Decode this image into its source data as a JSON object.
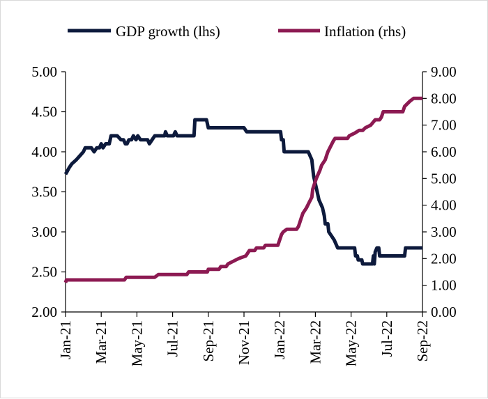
{
  "chart_data": {
    "type": "line",
    "title": "",
    "xlabel": "",
    "ylabel": "",
    "y2label": "",
    "grid": false,
    "legend_position": "top",
    "x_ticks": [
      "Jan-21",
      "Mar-21",
      "May-21",
      "Jul-21",
      "Sep-21",
      "Nov-21",
      "Jan-22",
      "Mar-22",
      "May-22",
      "Jul-22",
      "Sep-22"
    ],
    "x_range": [
      0,
      20
    ],
    "y_left": {
      "range": [
        2.0,
        5.0
      ],
      "ticks": [
        "2.00",
        "2.50",
        "3.00",
        "3.50",
        "4.00",
        "4.50",
        "5.00"
      ]
    },
    "y_right": {
      "range": [
        0.0,
        9.0
      ],
      "ticks": [
        "0.00",
        "1.00",
        "2.00",
        "3.00",
        "4.00",
        "5.00",
        "6.00",
        "7.00",
        "8.00",
        "9.00"
      ]
    },
    "x_unit": "months since Jan-21",
    "series": [
      {
        "name": "GDP growth (lhs)",
        "axis": "left",
        "color": "#0d1a3c",
        "points": [
          [
            0.0,
            3.72
          ],
          [
            0.08,
            3.75
          ],
          [
            0.2,
            3.8
          ],
          [
            0.35,
            3.85
          ],
          [
            0.6,
            3.9
          ],
          [
            0.8,
            3.95
          ],
          [
            1.0,
            4.0
          ],
          [
            1.1,
            4.05
          ],
          [
            1.45,
            4.05
          ],
          [
            1.6,
            4.0
          ],
          [
            1.75,
            4.05
          ],
          [
            1.9,
            4.05
          ],
          [
            2.0,
            4.1
          ],
          [
            2.1,
            4.05
          ],
          [
            2.25,
            4.1
          ],
          [
            2.45,
            4.1
          ],
          [
            2.55,
            4.2
          ],
          [
            2.9,
            4.2
          ],
          [
            3.1,
            4.15
          ],
          [
            3.25,
            4.15
          ],
          [
            3.35,
            4.1
          ],
          [
            3.45,
            4.1
          ],
          [
            3.55,
            4.15
          ],
          [
            3.7,
            4.15
          ],
          [
            3.8,
            4.2
          ],
          [
            3.95,
            4.15
          ],
          [
            4.05,
            4.2
          ],
          [
            4.2,
            4.15
          ],
          [
            4.45,
            4.15
          ],
          [
            4.6,
            4.15
          ],
          [
            4.7,
            4.1
          ],
          [
            4.85,
            4.15
          ],
          [
            5.0,
            4.2
          ],
          [
            5.55,
            4.2
          ],
          [
            5.6,
            4.25
          ],
          [
            5.7,
            4.2
          ],
          [
            6.05,
            4.2
          ],
          [
            6.15,
            4.25
          ],
          [
            6.25,
            4.2
          ],
          [
            7.2,
            4.2
          ],
          [
            7.25,
            4.4
          ],
          [
            7.9,
            4.4
          ],
          [
            8.0,
            4.3
          ],
          [
            10.0,
            4.3
          ],
          [
            10.15,
            4.25
          ],
          [
            12.05,
            4.25
          ],
          [
            12.1,
            4.15
          ],
          [
            12.2,
            4.15
          ],
          [
            12.25,
            4.0
          ],
          [
            13.6,
            4.0
          ],
          [
            13.8,
            3.9
          ],
          [
            13.9,
            3.7
          ],
          [
            14.1,
            3.5
          ],
          [
            14.2,
            3.4
          ],
          [
            14.3,
            3.35
          ],
          [
            14.4,
            3.3
          ],
          [
            14.5,
            3.2
          ],
          [
            14.55,
            3.1
          ],
          [
            14.7,
            3.1
          ],
          [
            14.75,
            3.0
          ],
          [
            15.05,
            2.9
          ],
          [
            15.25,
            2.8
          ],
          [
            16.2,
            2.8
          ],
          [
            16.25,
            2.7
          ],
          [
            16.35,
            2.7
          ],
          [
            16.4,
            2.65
          ],
          [
            16.6,
            2.65
          ],
          [
            16.65,
            2.6
          ],
          [
            17.2,
            2.6
          ],
          [
            17.25,
            2.7
          ],
          [
            17.3,
            2.6
          ],
          [
            17.35,
            2.75
          ],
          [
            17.45,
            2.8
          ],
          [
            17.55,
            2.8
          ],
          [
            17.6,
            2.7
          ],
          [
            19.0,
            2.7
          ],
          [
            19.05,
            2.8
          ],
          [
            20.0,
            2.8
          ]
        ]
      },
      {
        "name": "Inflation (rhs)",
        "axis": "right",
        "color": "#8c1a52",
        "points": [
          [
            0.0,
            1.1
          ],
          [
            0.05,
            1.2
          ],
          [
            3.3,
            1.2
          ],
          [
            3.4,
            1.3
          ],
          [
            5.0,
            1.3
          ],
          [
            5.2,
            1.4
          ],
          [
            6.8,
            1.4
          ],
          [
            6.9,
            1.5
          ],
          [
            7.95,
            1.5
          ],
          [
            8.0,
            1.6
          ],
          [
            8.6,
            1.6
          ],
          [
            8.7,
            1.7
          ],
          [
            9.0,
            1.7
          ],
          [
            9.1,
            1.8
          ],
          [
            9.4,
            1.9
          ],
          [
            9.7,
            2.0
          ],
          [
            10.1,
            2.1
          ],
          [
            10.2,
            2.2
          ],
          [
            10.3,
            2.3
          ],
          [
            10.6,
            2.3
          ],
          [
            10.7,
            2.4
          ],
          [
            11.1,
            2.4
          ],
          [
            11.2,
            2.5
          ],
          [
            11.9,
            2.5
          ],
          [
            12.0,
            2.7
          ],
          [
            12.1,
            2.9
          ],
          [
            12.2,
            3.0
          ],
          [
            12.4,
            3.1
          ],
          [
            12.95,
            3.1
          ],
          [
            13.05,
            3.2
          ],
          [
            13.1,
            3.3
          ],
          [
            13.2,
            3.5
          ],
          [
            13.3,
            3.7
          ],
          [
            13.5,
            3.9
          ],
          [
            13.65,
            4.1
          ],
          [
            13.8,
            4.3
          ],
          [
            13.85,
            4.6
          ],
          [
            13.95,
            4.8
          ],
          [
            14.05,
            5.0
          ],
          [
            14.25,
            5.3
          ],
          [
            14.35,
            5.5
          ],
          [
            14.55,
            5.7
          ],
          [
            14.65,
            5.9
          ],
          [
            14.7,
            6.0
          ],
          [
            14.85,
            6.2
          ],
          [
            15.0,
            6.4
          ],
          [
            15.1,
            6.5
          ],
          [
            15.8,
            6.5
          ],
          [
            15.9,
            6.6
          ],
          [
            16.2,
            6.7
          ],
          [
            16.45,
            6.8
          ],
          [
            16.65,
            6.8
          ],
          [
            16.8,
            6.9
          ],
          [
            17.1,
            7.0
          ],
          [
            17.35,
            7.2
          ],
          [
            17.6,
            7.2
          ],
          [
            17.7,
            7.3
          ],
          [
            17.8,
            7.5
          ],
          [
            18.9,
            7.5
          ],
          [
            19.0,
            7.7
          ],
          [
            19.3,
            7.9
          ],
          [
            19.5,
            8.0
          ],
          [
            20.0,
            8.0
          ]
        ]
      }
    ]
  }
}
